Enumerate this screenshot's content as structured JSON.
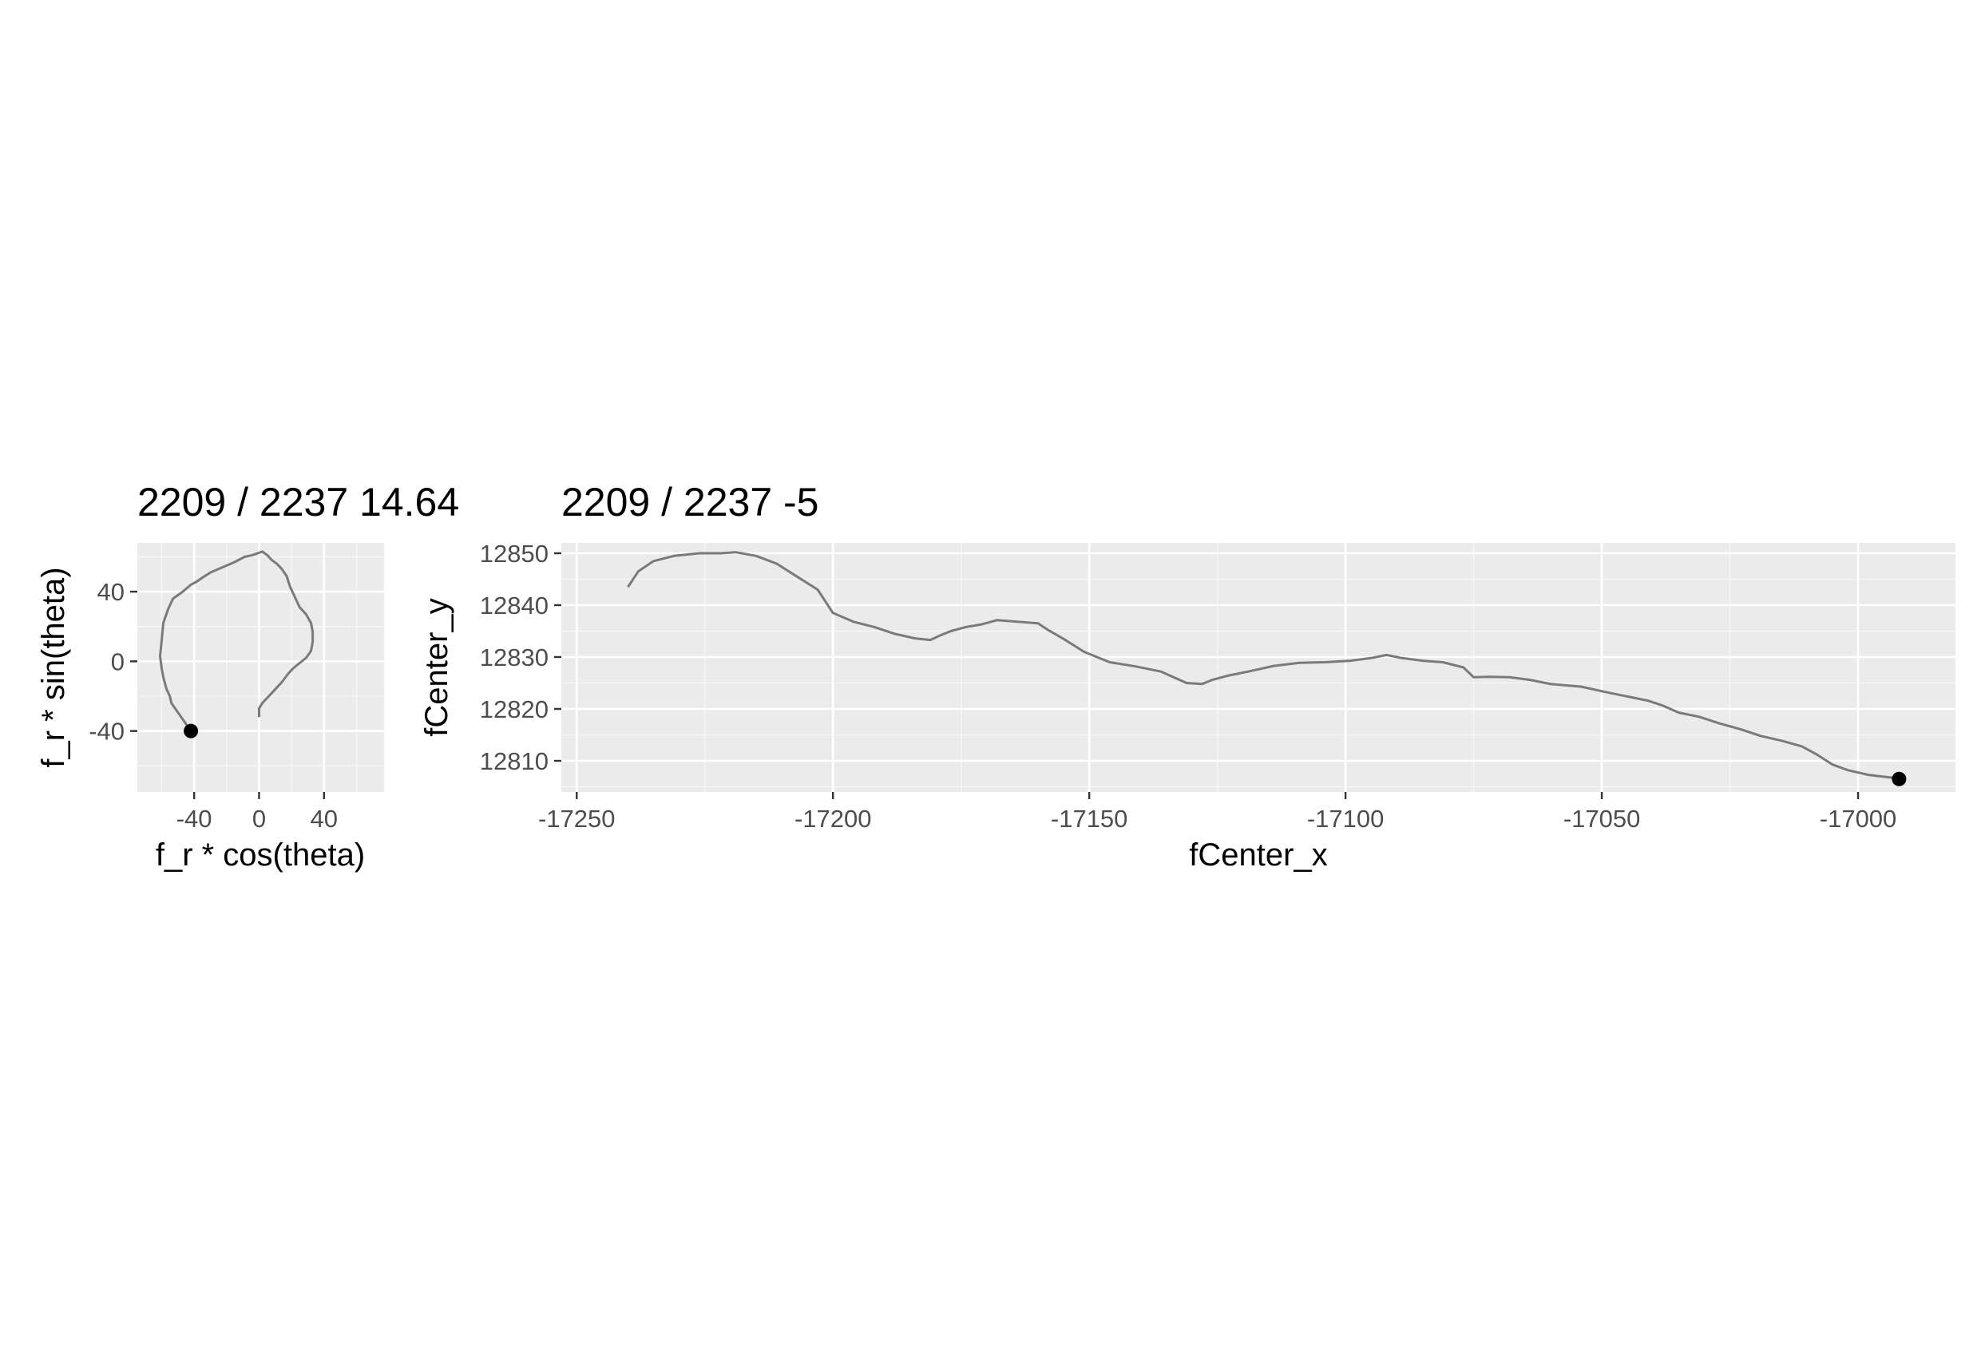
{
  "colors": {
    "panel_background": "#ebebeb",
    "grid_major": "#ffffff",
    "trajectory_line": "#7a7a7a",
    "current_point": "#000000",
    "tick_text": "#4d4d4d"
  },
  "chart_data": [
    {
      "type": "line",
      "title": "2209 / 2237 14.64",
      "xlabel": "f_r * cos(theta)",
      "ylabel": "f_r * sin(theta)",
      "xlim": [
        -75,
        77
      ],
      "ylim": [
        -75,
        68
      ],
      "x_ticks": [
        -40,
        0,
        40
      ],
      "x_tick_labels": [
        "-40",
        "0",
        "40"
      ],
      "y_ticks": [
        -40,
        0,
        40
      ],
      "y_tick_labels": [
        "-40",
        "0",
        "40"
      ],
      "grid": true,
      "aspect": "equal",
      "series": [
        {
          "x": [
            0,
            0,
            2,
            6,
            10,
            14,
            18,
            21,
            25,
            29,
            32,
            33,
            33,
            32,
            29,
            25,
            22,
            19,
            17,
            14,
            11,
            8,
            5,
            2,
            -1,
            -4,
            -9,
            -15,
            -20,
            -25,
            -30,
            -35,
            -38,
            -42,
            -47,
            -50,
            -53,
            -56,
            -59,
            -60,
            -61,
            -60,
            -59,
            -57,
            -55,
            -54,
            -51,
            -48,
            -45,
            -43,
            -42
          ],
          "y": [
            -32,
            -27,
            -24,
            -20,
            -16,
            -12,
            -7,
            -4,
            -1,
            2,
            6,
            11,
            17,
            22,
            27,
            31,
            37,
            43,
            49,
            53,
            56,
            58,
            61,
            63,
            62,
            61,
            60,
            57,
            55,
            53,
            51,
            48,
            46,
            44,
            40,
            38,
            36,
            30,
            22,
            12,
            3,
            -4,
            -9,
            -16,
            -20,
            -24,
            -28,
            -32,
            -36,
            -39,
            -40
          ]
        }
      ],
      "marker": {
        "x": -42,
        "y": -40
      }
    },
    {
      "type": "line",
      "title": "2209 / 2237 -5",
      "xlabel": "fCenter_x",
      "ylabel": "fCenter_y",
      "xlim": [
        -17253,
        -16981
      ],
      "ylim": [
        12804,
        12852
      ],
      "x_ticks": [
        -17250,
        -17200,
        -17150,
        -17100,
        -17050,
        -17000
      ],
      "x_tick_labels": [
        "-17250",
        "-17200",
        "-17150",
        "-17100",
        "-17050",
        "-17000"
      ],
      "y_ticks": [
        12810,
        12820,
        12830,
        12840,
        12850
      ],
      "y_tick_labels": [
        "12810",
        "12820",
        "12830",
        "12840",
        "12850"
      ],
      "grid": true,
      "series": [
        {
          "x": [
            -17240,
            -17238,
            -17235,
            -17231,
            -17226,
            -17222,
            -17219,
            -17215,
            -17211,
            -17207,
            -17203,
            -17200,
            -17196,
            -17192,
            -17188,
            -17184,
            -17181,
            -17179,
            -17177,
            -17174,
            -17171,
            -17168,
            -17164,
            -17160,
            -17158,
            -17155,
            -17151,
            -17146,
            -17141,
            -17136,
            -17131,
            -17128,
            -17126,
            -17123,
            -17119,
            -17114,
            -17109,
            -17104,
            -17099,
            -17095,
            -17092,
            -17089,
            -17085,
            -17081,
            -17077,
            -17075,
            -17072,
            -17068,
            -17064,
            -17060,
            -17054,
            -17049,
            -17045,
            -17041,
            -17038,
            -17035,
            -17031,
            -17027,
            -17023,
            -17019,
            -17015,
            -17011,
            -17008,
            -17005,
            -17002,
            -16998,
            -16992
          ],
          "y": [
            12843.5,
            12846.5,
            12848.5,
            12849.5,
            12850,
            12850,
            12850.2,
            12849.5,
            12848,
            12845.5,
            12843,
            12838.5,
            12836.8,
            12835.8,
            12834.5,
            12833.6,
            12833.3,
            12834.2,
            12835,
            12835.8,
            12836.3,
            12837.1,
            12836.8,
            12836.5,
            12835.2,
            12833.5,
            12831,
            12829,
            12828.2,
            12827.2,
            12825,
            12824.8,
            12825.6,
            12826.4,
            12827.2,
            12828.3,
            12828.9,
            12829,
            12829.3,
            12829.8,
            12830.4,
            12829.8,
            12829.3,
            12829,
            12828,
            12826.1,
            12826.2,
            12826.1,
            12825.6,
            12824.8,
            12824.3,
            12823.2,
            12822.4,
            12821.6,
            12820.6,
            12819.3,
            12818.5,
            12817.2,
            12816.1,
            12814.8,
            12813.9,
            12812.8,
            12811.2,
            12809.3,
            12808.2,
            12807.3,
            12806.6
          ]
        }
      ],
      "marker": {
        "x": -16992,
        "y": 12806.5
      }
    }
  ]
}
